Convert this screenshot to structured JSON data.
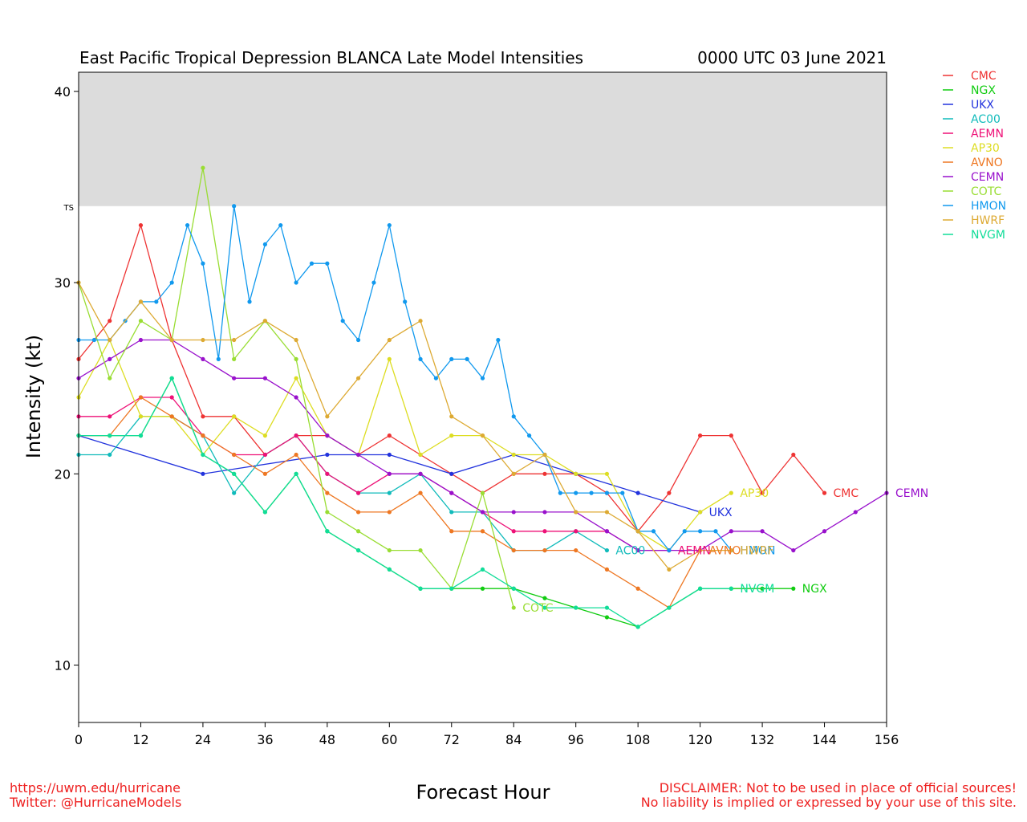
{
  "chart_data": {
    "type": "line",
    "title": "East Pacific Tropical Depression BLANCA Late Model Intensities",
    "subtitle": "0000 UTC 03 June 2021",
    "xlabel": "Forecast Hour",
    "ylabel": "Intensity (kt)",
    "xlim": [
      0,
      156
    ],
    "ylim": [
      7,
      41
    ],
    "xticks": [
      0,
      12,
      24,
      36,
      48,
      60,
      72,
      84,
      96,
      108,
      120,
      132,
      144,
      156
    ],
    "yticks": [
      10,
      20,
      30,
      40
    ],
    "ts_threshold": 34,
    "ts_label": "TS",
    "shade_color": "#dcdcdc",
    "legend_position": "top-right (outside plot)",
    "grid": false,
    "series": [
      {
        "name": "CMC",
        "color": "#ee3333",
        "x": [
          0,
          6,
          12,
          18,
          24,
          30,
          36,
          42,
          48,
          54,
          60,
          66,
          72,
          78,
          84,
          90,
          96,
          102,
          108,
          114,
          120,
          126,
          132,
          138,
          144
        ],
        "y": [
          26,
          28,
          33,
          27,
          23,
          23,
          21,
          22,
          22,
          21,
          22,
          21,
          20,
          19,
          20,
          20,
          20,
          19,
          17,
          19,
          22,
          22,
          19,
          21,
          19
        ],
        "show_label": true
      },
      {
        "name": "NGX",
        "color": "#11cc11",
        "x": [
          0,
          6,
          12,
          18,
          24,
          30,
          36,
          42,
          48,
          54,
          60,
          66,
          72,
          78,
          84,
          90,
          96,
          102,
          108,
          114,
          120,
          126,
          132,
          138
        ],
        "y": [
          22,
          22,
          22,
          25,
          21,
          20,
          18,
          20,
          17,
          16,
          15,
          14,
          14,
          14,
          14,
          13.5,
          13,
          12.5,
          12,
          13,
          14,
          14,
          14,
          14
        ],
        "show_label": true
      },
      {
        "name": "UKX",
        "color": "#2233dd",
        "x": [
          0,
          24,
          48,
          60,
          72,
          84,
          96,
          108,
          120
        ],
        "y": [
          22,
          20,
          21,
          21,
          20,
          21,
          20,
          19,
          18
        ],
        "show_label": true
      },
      {
        "name": "AC00",
        "color": "#11bbbb",
        "x": [
          0,
          6,
          12,
          18,
          24,
          30,
          36,
          42,
          48,
          54,
          60,
          66,
          72,
          78,
          84,
          90,
          96,
          102
        ],
        "y": [
          21,
          21,
          23,
          23,
          22,
          19,
          21,
          22,
          20,
          19,
          19,
          20,
          18,
          18,
          16,
          16,
          17,
          16
        ],
        "show_label": true
      },
      {
        "name": "AEMN",
        "color": "#ee1177",
        "x": [
          0,
          6,
          12,
          18,
          24,
          30,
          36,
          42,
          48,
          54,
          60,
          66,
          72,
          78,
          84,
          90,
          96,
          102,
          108,
          114
        ],
        "y": [
          23,
          23,
          24,
          24,
          22,
          21,
          21,
          22,
          20,
          19,
          20,
          20,
          19,
          18,
          17,
          17,
          17,
          17,
          16,
          16
        ],
        "show_label": true
      },
      {
        "name": "AP30",
        "color": "#dddd22",
        "x": [
          0,
          6,
          12,
          18,
          24,
          30,
          36,
          42,
          48,
          54,
          60,
          66,
          72,
          78,
          84,
          90,
          96,
          102,
          108,
          114,
          120,
          126
        ],
        "y": [
          24,
          27,
          23,
          23,
          21,
          23,
          22,
          25,
          22,
          21,
          26,
          21,
          22,
          22,
          21,
          21,
          20,
          20,
          17,
          16,
          18,
          19
        ],
        "show_label": true
      },
      {
        "name": "AVNO",
        "color": "#ee7722",
        "x": [
          0,
          6,
          12,
          18,
          24,
          30,
          36,
          42,
          48,
          54,
          60,
          66,
          72,
          78,
          84,
          90,
          96,
          102,
          108,
          114,
          120
        ],
        "y": [
          22,
          22,
          24,
          23,
          22,
          21,
          20,
          21,
          19,
          18,
          18,
          19,
          17,
          17,
          16,
          16,
          16,
          15,
          14,
          13,
          16
        ],
        "show_label": true
      },
      {
        "name": "CEMN",
        "color": "#9911cc",
        "x": [
          0,
          6,
          12,
          18,
          24,
          30,
          36,
          42,
          48,
          54,
          60,
          66,
          72,
          78,
          84,
          90,
          96,
          102,
          108,
          114,
          120,
          126,
          132,
          138,
          144,
          150,
          156
        ],
        "y": [
          25,
          26,
          27,
          27,
          26,
          25,
          25,
          24,
          22,
          21,
          20,
          20,
          19,
          18,
          18,
          18,
          18,
          17,
          16,
          16,
          16,
          17,
          17,
          16,
          17,
          18,
          19
        ],
        "show_label": true
      },
      {
        "name": "COTC",
        "color": "#99dd33",
        "x": [
          0,
          6,
          12,
          18,
          24,
          30,
          36,
          42,
          48,
          54,
          60,
          66,
          72,
          78,
          84
        ],
        "y": [
          30,
          25,
          28,
          27,
          36,
          26,
          28,
          26,
          18,
          17,
          16,
          16,
          14,
          19,
          13
        ],
        "show_label": true
      },
      {
        "name": "HMON",
        "color": "#1199ee",
        "x": [
          0,
          3,
          6,
          9,
          12,
          15,
          18,
          21,
          24,
          27,
          30,
          33,
          36,
          39,
          42,
          45,
          48,
          51,
          54,
          57,
          60,
          63,
          66,
          69,
          72,
          75,
          78,
          81,
          84,
          87,
          90,
          93,
          96,
          99,
          102,
          105,
          108,
          111,
          114,
          117,
          120,
          123,
          126
        ],
        "y": [
          27,
          27,
          27,
          28,
          29,
          29,
          30,
          33,
          31,
          26,
          34,
          29,
          32,
          33,
          30,
          31,
          31,
          28,
          27,
          30,
          33,
          29,
          26,
          25,
          26,
          26,
          25,
          27,
          23,
          22,
          21,
          19,
          19,
          19,
          19,
          19,
          17,
          17,
          16,
          17,
          17,
          17,
          16
        ],
        "show_label": true
      },
      {
        "name": "HWRF",
        "color": "#ddaa33",
        "x": [
          0,
          6,
          12,
          18,
          24,
          30,
          36,
          42,
          48,
          54,
          60,
          66,
          72,
          78,
          84,
          90,
          96,
          102,
          108,
          114,
          120,
          126
        ],
        "y": [
          30,
          27,
          29,
          27,
          27,
          27,
          28,
          27,
          23,
          25,
          27,
          28,
          23,
          22,
          20,
          21,
          18,
          18,
          17,
          15,
          16,
          16
        ],
        "show_label": true
      },
      {
        "name": "NVGM",
        "color": "#11dd99",
        "x": [
          0,
          6,
          12,
          18,
          24,
          30,
          36,
          42,
          48,
          54,
          60,
          66,
          72,
          78,
          84,
          90,
          96,
          102,
          108,
          114,
          120,
          126
        ],
        "y": [
          22,
          22,
          22,
          25,
          21,
          20,
          18,
          20,
          17,
          16,
          15,
          14,
          14,
          15,
          14,
          13,
          13,
          13,
          12,
          13,
          14,
          14
        ],
        "show_label": true
      }
    ]
  },
  "footer": {
    "left_line1": "https://uwm.edu/hurricane",
    "left_line2": "Twitter: @HurricaneModels",
    "right_line1": "DISCLAIMER: Not to be used in place of official sources!",
    "right_line2": "No liability is implied or expressed by your use of this site.",
    "color": "#ee2222"
  }
}
